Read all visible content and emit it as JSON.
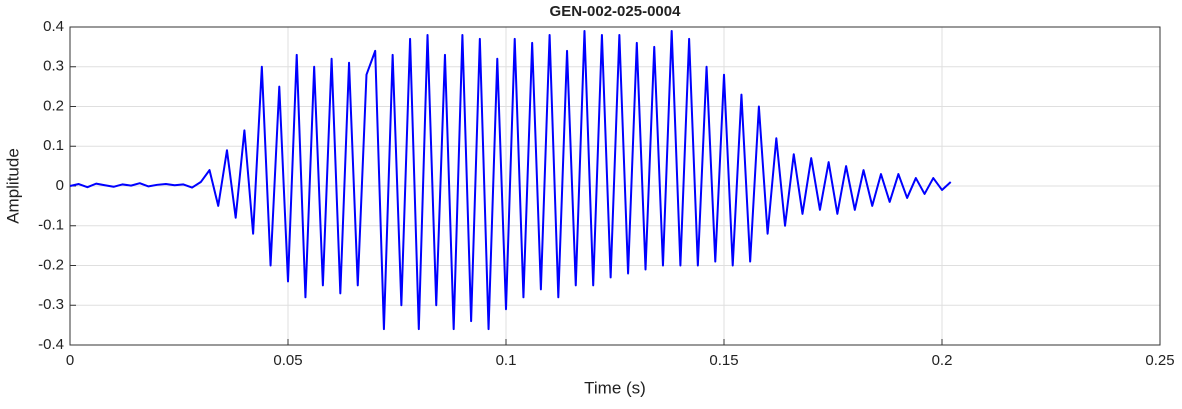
{
  "chart_data": {
    "type": "line",
    "title": "GEN-002-025-0004",
    "xlabel": "Time (s)",
    "ylabel": "Amplitude",
    "x": [
      0,
      0.002,
      0.004,
      0.006,
      0.008,
      0.01,
      0.012,
      0.014,
      0.016,
      0.018,
      0.02,
      0.022,
      0.024,
      0.026,
      0.028,
      0.03,
      0.032,
      0.034,
      0.036,
      0.038,
      0.04,
      0.042,
      0.044,
      0.046,
      0.048,
      0.05,
      0.052,
      0.054,
      0.056,
      0.058,
      0.06,
      0.062,
      0.064,
      0.066,
      0.068,
      0.07,
      0.072,
      0.074,
      0.076,
      0.078,
      0.08,
      0.082,
      0.084,
      0.086,
      0.088,
      0.09,
      0.092,
      0.094,
      0.096,
      0.098,
      0.1,
      0.102,
      0.104,
      0.106,
      0.108,
      0.11,
      0.112,
      0.114,
      0.116,
      0.118,
      0.12,
      0.122,
      0.124,
      0.126,
      0.128,
      0.13,
      0.132,
      0.134,
      0.136,
      0.138,
      0.14,
      0.142,
      0.144,
      0.146,
      0.148,
      0.15,
      0.152,
      0.154,
      0.156,
      0.158,
      0.16,
      0.162,
      0.164,
      0.166,
      0.168,
      0.17,
      0.172,
      0.174,
      0.176,
      0.178,
      0.18,
      0.182,
      0.184,
      0.186,
      0.188,
      0.19,
      0.192,
      0.194,
      0.196,
      0.198,
      0.2,
      0.202
    ],
    "series": [
      {
        "name": "Amplitude",
        "color": "#0000ff",
        "values": [
          0,
          0.005,
          -0.003,
          0.006,
          0.002,
          -0.002,
          0.004,
          0.001,
          0.007,
          -0.001,
          0.003,
          0.005,
          0.002,
          0.004,
          -0.004,
          0.01,
          0.04,
          -0.05,
          0.09,
          -0.08,
          0.14,
          -0.12,
          0.3,
          -0.2,
          0.25,
          -0.24,
          0.33,
          -0.28,
          0.3,
          -0.25,
          0.32,
          -0.27,
          0.31,
          -0.25,
          0.28,
          0.34,
          -0.36,
          0.33,
          -0.3,
          0.37,
          -0.36,
          0.38,
          -0.3,
          0.33,
          -0.36,
          0.38,
          -0.34,
          0.37,
          -0.36,
          0.32,
          -0.31,
          0.37,
          -0.28,
          0.36,
          -0.26,
          0.38,
          -0.28,
          0.34,
          -0.25,
          0.39,
          -0.25,
          0.38,
          -0.23,
          0.38,
          -0.22,
          0.36,
          -0.21,
          0.35,
          -0.2,
          0.39,
          -0.2,
          0.37,
          -0.2,
          0.3,
          -0.19,
          0.28,
          -0.2,
          0.23,
          -0.19,
          0.2,
          -0.12,
          0.12,
          -0.1,
          0.08,
          -0.07,
          0.07,
          -0.06,
          0.06,
          -0.07,
          0.05,
          -0.06,
          0.04,
          -0.05,
          0.03,
          -0.04,
          0.03,
          -0.03,
          0.02,
          -0.02,
          0.02,
          -0.01,
          0.01
        ]
      }
    ],
    "xlim": [
      0,
      0.25
    ],
    "xticks": [
      0,
      0.05,
      0.1,
      0.15,
      0.2,
      0.25
    ],
    "ylim": [
      -0.4,
      0.4
    ],
    "yticks": [
      -0.4,
      -0.3,
      -0.2,
      -0.1,
      0,
      0.1,
      0.2,
      0.3,
      0.4
    ],
    "grid": true
  }
}
